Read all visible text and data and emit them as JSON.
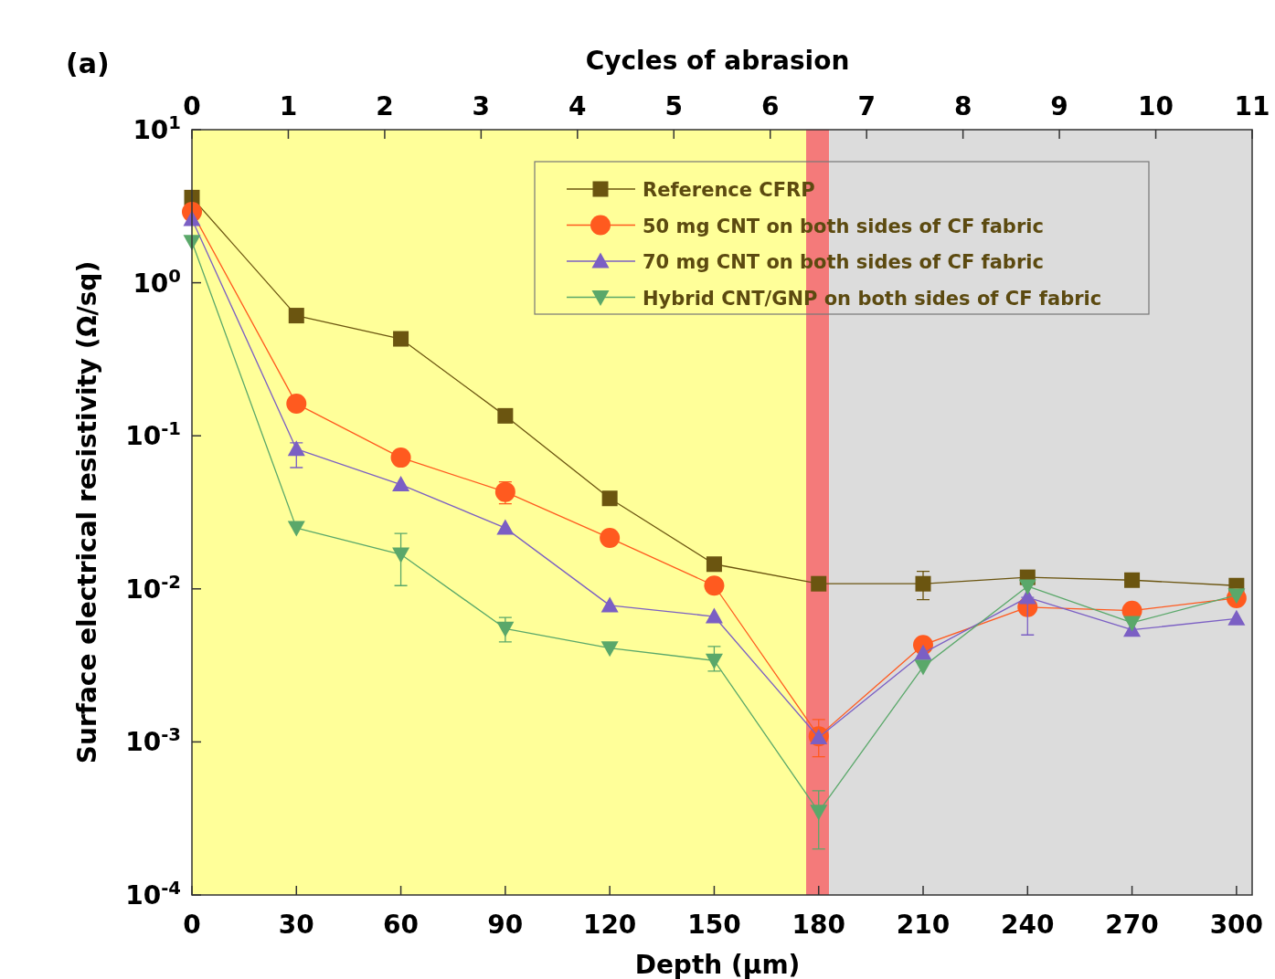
{
  "chart_data": {
    "type": "line",
    "xlabel": "Depth (μm)",
    "x2label": "Cycles of abrasion",
    "ylabel": "Surface electrical resistivity (Ω/sq)",
    "annotations": [
      "(a)"
    ],
    "x": [
      0,
      30,
      60,
      90,
      120,
      150,
      180,
      210,
      240,
      270,
      300
    ],
    "xlim": [
      0,
      304.5
    ],
    "xticks": [
      0,
      30,
      60,
      90,
      120,
      150,
      180,
      210,
      240,
      270,
      300
    ],
    "x2lim": [
      0,
      11
    ],
    "x2ticks": [
      0,
      1,
      2,
      3,
      4,
      5,
      6,
      7,
      8,
      9,
      10,
      11
    ],
    "log": "y",
    "ylim": [
      0.0001,
      10
    ],
    "yticks": [
      {
        "value": 10,
        "label": "10$^{1}$"
      },
      {
        "value": 1,
        "label": "10$^{0}$"
      },
      {
        "value": 0.1,
        "label": "10$^{-1}$"
      },
      {
        "value": 0.01,
        "label": "10$^{-2}$"
      },
      {
        "value": 0.001,
        "label": "10$^{-3}$"
      },
      {
        "value": 0.0001,
        "label": "10$^{-4}$"
      }
    ],
    "grid": false,
    "legend": "top right",
    "bands": [
      {
        "axis": "x",
        "from": 0,
        "to": 176.4,
        "color": "#ffff99"
      },
      {
        "axis": "x",
        "from": 176.4,
        "to": 183,
        "color": "#f47a7a"
      },
      {
        "axis": "x",
        "from": 183,
        "to": 304.5,
        "color": "#dcdcdc"
      }
    ],
    "series": [
      {
        "name": "Reference CFRP",
        "color": "#6b5510",
        "marker": "square",
        "values": [
          3.6,
          0.61,
          0.43,
          0.135,
          0.039,
          0.0145,
          0.0108,
          0.0108,
          0.0119,
          0.0114,
          0.0105
        ],
        "errors": [
          null,
          null,
          null,
          null,
          null,
          null,
          null,
          [
            0.0085,
            0.013
          ],
          null,
          null,
          null
        ]
      },
      {
        "name": "50 mg CNT on both sides of CF fabric",
        "color": "#ff5a1f",
        "marker": "circle",
        "values": [
          2.9,
          0.162,
          0.072,
          0.043,
          0.0215,
          0.0105,
          0.00109,
          0.0043,
          0.0076,
          0.0072,
          0.0087
        ],
        "errors": [
          null,
          null,
          null,
          [
            0.036,
            0.05
          ],
          null,
          null,
          [
            0.0008,
            0.0014
          ],
          null,
          null,
          null,
          null
        ]
      },
      {
        "name": "70 mg CNT on both sides of CF fabric",
        "color": "#7b5fc4",
        "marker": "triangle",
        "values": [
          2.6,
          0.082,
          0.048,
          0.025,
          0.0078,
          0.0066,
          0.00107,
          0.0038,
          0.0088,
          0.0054,
          0.0064
        ],
        "errors": [
          null,
          [
            0.062,
            0.09
          ],
          null,
          null,
          null,
          null,
          null,
          null,
          [
            0.005,
            0.0088
          ],
          null,
          null
        ]
      },
      {
        "name": "Hybrid CNT/GNP on both sides of CF fabric",
        "color": "#5aa86a",
        "marker": "triangle-down",
        "values": [
          1.85,
          0.025,
          0.0168,
          0.0055,
          0.0041,
          0.0034,
          0.00035,
          0.0031,
          0.0104,
          0.006,
          0.0091
        ],
        "errors": [
          null,
          null,
          [
            0.0105,
            0.023
          ],
          [
            0.0045,
            0.0065
          ],
          null,
          [
            0.0029,
            0.0042
          ],
          [
            0.0002,
            0.00048
          ],
          null,
          null,
          null,
          null
        ]
      }
    ]
  }
}
